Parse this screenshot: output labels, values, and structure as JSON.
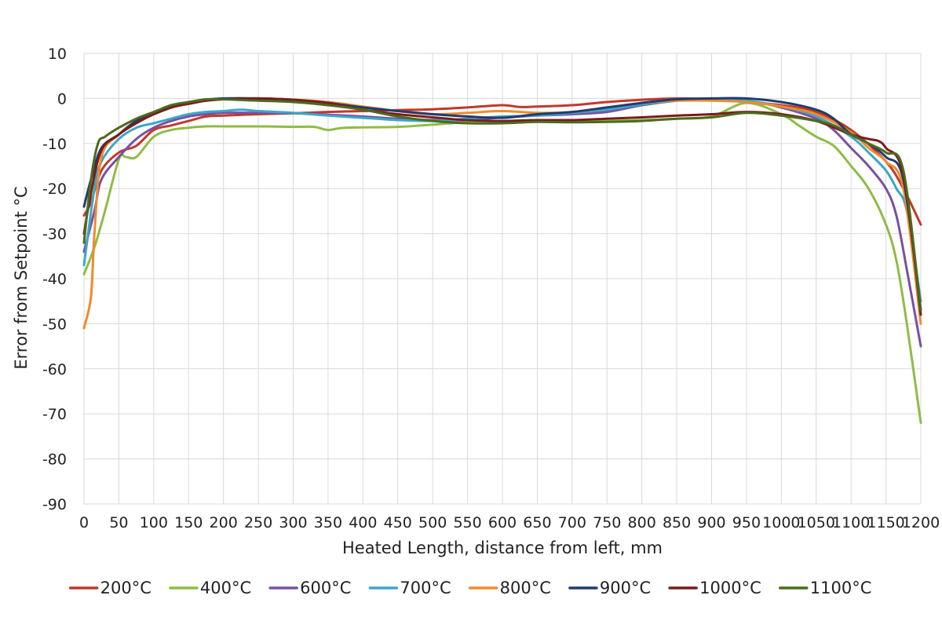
{
  "chart_data": {
    "type": "line",
    "title": "",
    "xlabel": "Heated Length, distance from left, mm",
    "ylabel": "Error from Setpoint °C",
    "xlim": [
      0,
      1200
    ],
    "ylim": [
      -90,
      10
    ],
    "x_ticks": [
      0,
      50,
      100,
      150,
      200,
      250,
      300,
      350,
      400,
      450,
      500,
      550,
      600,
      650,
      700,
      750,
      800,
      850,
      900,
      950,
      1000,
      1050,
      1100,
      1150,
      1200
    ],
    "y_ticks": [
      10,
      0,
      -10,
      -20,
      -30,
      -40,
      -50,
      -60,
      -70,
      -80,
      -90
    ],
    "grid": true,
    "legend_position": "bottom",
    "series": [
      {
        "name": "200°C",
        "color": "#c0392b",
        "points": [
          [
            0,
            -26
          ],
          [
            10,
            -23
          ],
          [
            25,
            -16
          ],
          [
            50,
            -12
          ],
          [
            75,
            -10.5
          ],
          [
            100,
            -7
          ],
          [
            125,
            -6
          ],
          [
            150,
            -5
          ],
          [
            175,
            -4
          ],
          [
            200,
            -3.8
          ],
          [
            250,
            -3.5
          ],
          [
            300,
            -3.3
          ],
          [
            350,
            -3
          ],
          [
            400,
            -2.8
          ],
          [
            450,
            -2.6
          ],
          [
            500,
            -2.4
          ],
          [
            550,
            -2
          ],
          [
            600,
            -1.5
          ],
          [
            625,
            -1.9
          ],
          [
            650,
            -1.8
          ],
          [
            700,
            -1.5
          ],
          [
            750,
            -0.8
          ],
          [
            800,
            -0.3
          ],
          [
            850,
            0
          ],
          [
            900,
            -0.2
          ],
          [
            950,
            -0.8
          ],
          [
            1000,
            -1.5
          ],
          [
            1050,
            -3
          ],
          [
            1100,
            -7
          ],
          [
            1150,
            -14
          ],
          [
            1175,
            -20
          ],
          [
            1200,
            -28
          ]
        ]
      },
      {
        "name": "400°C",
        "color": "#8fbc45",
        "points": [
          [
            0,
            -39
          ],
          [
            15,
            -33
          ],
          [
            30,
            -25
          ],
          [
            50,
            -13.5
          ],
          [
            60,
            -13
          ],
          [
            75,
            -13
          ],
          [
            100,
            -8.5
          ],
          [
            125,
            -7
          ],
          [
            150,
            -6.5
          ],
          [
            175,
            -6.2
          ],
          [
            200,
            -6.2
          ],
          [
            250,
            -6.2
          ],
          [
            300,
            -6.3
          ],
          [
            330,
            -6.3
          ],
          [
            350,
            -7
          ],
          [
            375,
            -6.5
          ],
          [
            450,
            -6.3
          ],
          [
            500,
            -5.8
          ],
          [
            550,
            -5.3
          ],
          [
            600,
            -5.3
          ],
          [
            650,
            -5
          ],
          [
            700,
            -5
          ],
          [
            750,
            -5
          ],
          [
            800,
            -4.8
          ],
          [
            850,
            -4.5
          ],
          [
            900,
            -4
          ],
          [
            950,
            -1
          ],
          [
            1000,
            -3.5
          ],
          [
            1025,
            -6
          ],
          [
            1050,
            -8.5
          ],
          [
            1075,
            -10.5
          ],
          [
            1100,
            -15
          ],
          [
            1125,
            -20
          ],
          [
            1150,
            -28
          ],
          [
            1165,
            -36
          ],
          [
            1180,
            -50
          ],
          [
            1200,
            -72
          ]
        ]
      },
      {
        "name": "600°C",
        "color": "#7b4fa0",
        "points": [
          [
            0,
            -34
          ],
          [
            15,
            -25
          ],
          [
            25,
            -18
          ],
          [
            50,
            -13
          ],
          [
            75,
            -9
          ],
          [
            100,
            -6.5
          ],
          [
            125,
            -5
          ],
          [
            150,
            -4
          ],
          [
            175,
            -3.5
          ],
          [
            200,
            -3.2
          ],
          [
            250,
            -3.2
          ],
          [
            300,
            -3.3
          ],
          [
            350,
            -3.6
          ],
          [
            400,
            -4
          ],
          [
            450,
            -4.5
          ],
          [
            500,
            -4.8
          ],
          [
            550,
            -4.8
          ],
          [
            600,
            -4.2
          ],
          [
            650,
            -3.8
          ],
          [
            700,
            -3.5
          ],
          [
            750,
            -3
          ],
          [
            800,
            -1.5
          ],
          [
            850,
            -0.5
          ],
          [
            900,
            0
          ],
          [
            950,
            -0.5
          ],
          [
            1000,
            -2
          ],
          [
            1050,
            -4.5
          ],
          [
            1075,
            -7
          ],
          [
            1100,
            -11
          ],
          [
            1125,
            -15
          ],
          [
            1150,
            -20
          ],
          [
            1165,
            -26
          ],
          [
            1180,
            -38
          ],
          [
            1200,
            -55
          ]
        ]
      },
      {
        "name": "700°C",
        "color": "#3ba7c8",
        "points": [
          [
            0,
            -37
          ],
          [
            15,
            -20
          ],
          [
            25,
            -14
          ],
          [
            50,
            -9
          ],
          [
            75,
            -6.5
          ],
          [
            100,
            -5.5
          ],
          [
            125,
            -4.5
          ],
          [
            150,
            -3.5
          ],
          [
            175,
            -3
          ],
          [
            200,
            -2.8
          ],
          [
            225,
            -2.5
          ],
          [
            250,
            -2.8
          ],
          [
            300,
            -3.2
          ],
          [
            350,
            -3.8
          ],
          [
            400,
            -4.3
          ],
          [
            450,
            -4.8
          ],
          [
            500,
            -5
          ],
          [
            550,
            -4.5
          ],
          [
            600,
            -4
          ],
          [
            650,
            -3.8
          ],
          [
            700,
            -3.2
          ],
          [
            750,
            -2.5
          ],
          [
            800,
            -1.3
          ],
          [
            850,
            -0.5
          ],
          [
            900,
            -0.2
          ],
          [
            950,
            -0.5
          ],
          [
            1000,
            -1.8
          ],
          [
            1050,
            -4
          ],
          [
            1100,
            -8.5
          ],
          [
            1125,
            -12
          ],
          [
            1150,
            -16
          ],
          [
            1165,
            -20
          ],
          [
            1180,
            -25
          ],
          [
            1200,
            -45
          ]
        ]
      },
      {
        "name": "800°C",
        "color": "#f08a2c",
        "points": [
          [
            0,
            -51
          ],
          [
            10,
            -44
          ],
          [
            15,
            -30
          ],
          [
            25,
            -13
          ],
          [
            50,
            -8
          ],
          [
            75,
            -5
          ],
          [
            100,
            -3.5
          ],
          [
            125,
            -2
          ],
          [
            150,
            -1
          ],
          [
            175,
            -0.5
          ],
          [
            200,
            -0.2
          ],
          [
            250,
            -0.2
          ],
          [
            300,
            -0.3
          ],
          [
            350,
            -0.8
          ],
          [
            400,
            -1.8
          ],
          [
            450,
            -2.8
          ],
          [
            500,
            -3.5
          ],
          [
            550,
            -3.2
          ],
          [
            600,
            -2.8
          ],
          [
            650,
            -3.2
          ],
          [
            700,
            -3
          ],
          [
            750,
            -2
          ],
          [
            800,
            -1
          ],
          [
            850,
            -0.5
          ],
          [
            900,
            -0.5
          ],
          [
            950,
            -0.8
          ],
          [
            1000,
            -1.8
          ],
          [
            1050,
            -3.5
          ],
          [
            1100,
            -7.5
          ],
          [
            1125,
            -11
          ],
          [
            1150,
            -14
          ],
          [
            1175,
            -20
          ],
          [
            1200,
            -50
          ]
        ]
      },
      {
        "name": "900°C",
        "color": "#1f3d6e",
        "points": [
          [
            0,
            -24
          ],
          [
            10,
            -18
          ],
          [
            25,
            -11
          ],
          [
            50,
            -8
          ],
          [
            75,
            -5
          ],
          [
            100,
            -3.5
          ],
          [
            125,
            -2
          ],
          [
            150,
            -1
          ],
          [
            175,
            -0.3
          ],
          [
            200,
            0
          ],
          [
            250,
            0
          ],
          [
            300,
            -0.3
          ],
          [
            350,
            -1
          ],
          [
            400,
            -2
          ],
          [
            450,
            -2.8
          ],
          [
            500,
            -3.5
          ],
          [
            550,
            -4
          ],
          [
            600,
            -4.3
          ],
          [
            650,
            -3.5
          ],
          [
            700,
            -3
          ],
          [
            750,
            -2
          ],
          [
            800,
            -1
          ],
          [
            850,
            -0.2
          ],
          [
            900,
            0
          ],
          [
            950,
            0
          ],
          [
            1000,
            -0.8
          ],
          [
            1050,
            -2.5
          ],
          [
            1075,
            -4.5
          ],
          [
            1100,
            -8
          ],
          [
            1125,
            -10
          ],
          [
            1150,
            -13
          ],
          [
            1175,
            -18
          ],
          [
            1200,
            -47
          ]
        ]
      },
      {
        "name": "1000°C",
        "color": "#7a1c1c",
        "points": [
          [
            0,
            -30
          ],
          [
            10,
            -21
          ],
          [
            25,
            -11.5
          ],
          [
            50,
            -8
          ],
          [
            75,
            -5.5
          ],
          [
            100,
            -3.5
          ],
          [
            125,
            -2
          ],
          [
            150,
            -1.2
          ],
          [
            175,
            -0.5
          ],
          [
            200,
            -0.2
          ],
          [
            250,
            0
          ],
          [
            300,
            -0.3
          ],
          [
            350,
            -1
          ],
          [
            400,
            -2.5
          ],
          [
            450,
            -3.5
          ],
          [
            500,
            -4.2
          ],
          [
            550,
            -4.8
          ],
          [
            600,
            -5
          ],
          [
            650,
            -4.8
          ],
          [
            700,
            -4.8
          ],
          [
            750,
            -4.5
          ],
          [
            800,
            -4.2
          ],
          [
            850,
            -3.8
          ],
          [
            900,
            -3.5
          ],
          [
            950,
            -3
          ],
          [
            1000,
            -3.5
          ],
          [
            1050,
            -5
          ],
          [
            1100,
            -8
          ],
          [
            1125,
            -9
          ],
          [
            1140,
            -9.5
          ],
          [
            1150,
            -11
          ],
          [
            1175,
            -17
          ],
          [
            1200,
            -48
          ]
        ]
      },
      {
        "name": "1100°C",
        "color": "#4a6b1e",
        "points": [
          [
            0,
            -32
          ],
          [
            10,
            -18
          ],
          [
            20,
            -10
          ],
          [
            30,
            -8.5
          ],
          [
            50,
            -6.5
          ],
          [
            75,
            -4.5
          ],
          [
            100,
            -3
          ],
          [
            125,
            -1.5
          ],
          [
            150,
            -0.8
          ],
          [
            175,
            -0.2
          ],
          [
            200,
            -0.2
          ],
          [
            250,
            -0.5
          ],
          [
            300,
            -0.8
          ],
          [
            350,
            -1.5
          ],
          [
            400,
            -2.5
          ],
          [
            450,
            -4
          ],
          [
            500,
            -5
          ],
          [
            550,
            -5.5
          ],
          [
            600,
            -5.5
          ],
          [
            650,
            -5.2
          ],
          [
            700,
            -5.3
          ],
          [
            750,
            -5.2
          ],
          [
            800,
            -5
          ],
          [
            850,
            -4.5
          ],
          [
            900,
            -4.2
          ],
          [
            950,
            -3.2
          ],
          [
            1000,
            -3.8
          ],
          [
            1050,
            -5
          ],
          [
            1075,
            -6
          ],
          [
            1100,
            -8
          ],
          [
            1125,
            -10
          ],
          [
            1150,
            -12
          ],
          [
            1175,
            -16
          ],
          [
            1200,
            -47
          ]
        ]
      }
    ]
  }
}
